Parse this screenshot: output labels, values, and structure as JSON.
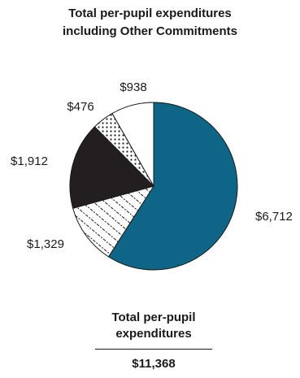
{
  "chart_data": {
    "type": "pie",
    "title": [
      "Total per-pupil expenditures",
      "including Other Commitments"
    ],
    "slices": [
      {
        "label": "$6,712",
        "value": 6712,
        "fill": "#0e6586",
        "pattern": "solid"
      },
      {
        "label": "$1,329",
        "value": 1329,
        "fill": "#ffffff",
        "pattern": "diagonal-hatch"
      },
      {
        "label": "$1,912",
        "value": 1912,
        "fill": "#231f20",
        "pattern": "solid"
      },
      {
        "label": "$476",
        "value": 476,
        "fill": "#ffffff",
        "pattern": "dots"
      },
      {
        "label": "$938",
        "value": 938,
        "fill": "#ffffff",
        "pattern": "solid"
      }
    ],
    "total": {
      "label": [
        "Total per-pupil",
        "expenditures"
      ],
      "value": "$11,368"
    }
  }
}
